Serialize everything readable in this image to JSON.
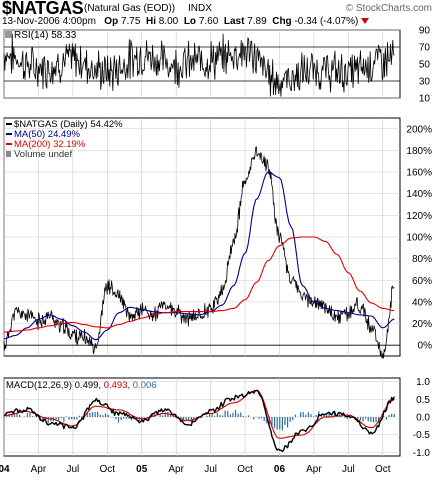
{
  "header": {
    "symbol": "$NATGAS",
    "name": "(Natural Gas (EOD))",
    "exchange": "INDX",
    "brand": "© StockCharts.com",
    "date": "13-Nov-2006 4:00pm",
    "op_label": "Op",
    "op": "7.75",
    "hi_label": "Hi",
    "hi": "8.00",
    "lo_label": "Lo",
    "lo": "7.60",
    "last_label": "Last",
    "last": "7.89",
    "chg_label": "Chg",
    "chg": "-0.34",
    "chg_pct": "(-4.07%)"
  },
  "colors": {
    "price": "#000000",
    "ma50": "#00008b",
    "ma200": "#e00000",
    "rsi": "#000000",
    "macd": "#000000",
    "signal": "#cc0000",
    "hist": "#2e6da4",
    "grid": "#cccccc"
  },
  "rsi_panel": {
    "legend_label": "RSI(14)",
    "legend_value": "58.33",
    "ticks": [
      "90",
      "70",
      "50",
      "30",
      "10"
    ]
  },
  "price_panel": {
    "legend": [
      {
        "key": "price",
        "text": "$NATGAS (Daily) 54.42%"
      },
      {
        "key": "ma50",
        "text": "MA(50) 24.49%"
      },
      {
        "key": "ma200",
        "text": "MA(200) 32.19%"
      },
      {
        "key": "vol",
        "text": "Volume undef"
      }
    ],
    "ticks": [
      "200%",
      "180%",
      "160%",
      "140%",
      "120%",
      "100%",
      "80%",
      "60%",
      "40%",
      "20%",
      "0%"
    ]
  },
  "macd_panel": {
    "legend_label": "MACD(12,26,9)",
    "macd_value": "0.499",
    "signal_value": "0.493",
    "hist_value": "0.006",
    "ticks": [
      "1.0",
      "0.5",
      "0.0",
      "-0.5",
      "-1.0"
    ]
  },
  "x_axis": {
    "labels": [
      "04",
      "Apr",
      "Jul",
      "Oct",
      "05",
      "Apr",
      "Jul",
      "Oct",
      "06",
      "Apr",
      "Jul",
      "Oct"
    ]
  },
  "chart_data": [
    {
      "type": "line",
      "title": "RSI(14)",
      "ylim": [
        10,
        90
      ],
      "x": [
        "2004-01",
        "2004-04",
        "2004-07",
        "2004-10",
        "2005-01",
        "2005-04",
        "2005-07",
        "2005-10",
        "2006-01",
        "2006-04",
        "2006-07",
        "2006-10",
        "2006-11"
      ],
      "series": [
        {
          "name": "RSI(14)",
          "values": [
            62,
            45,
            55,
            40,
            60,
            50,
            55,
            65,
            30,
            42,
            40,
            55,
            58
          ]
        }
      ]
    },
    {
      "type": "line",
      "title": "$NATGAS (Daily)",
      "ylim": [
        -10,
        210
      ],
      "x": [
        "2004-01",
        "2004-02",
        "2004-03",
        "2004-04",
        "2004-05",
        "2004-06",
        "2004-07",
        "2004-08",
        "2004-09",
        "2004-10",
        "2004-11",
        "2004-12",
        "2005-01",
        "2005-02",
        "2005-03",
        "2005-04",
        "2005-05",
        "2005-06",
        "2005-07",
        "2005-08",
        "2005-09",
        "2005-10",
        "2005-11",
        "2005-12",
        "2006-01",
        "2006-02",
        "2006-03",
        "2006-04",
        "2006-05",
        "2006-06",
        "2006-07",
        "2006-08",
        "2006-09",
        "2006-10",
        "2006-11"
      ],
      "series": [
        {
          "name": "$NATGAS (Daily)",
          "values": [
            0,
            30,
            28,
            22,
            27,
            18,
            10,
            6,
            0,
            55,
            45,
            25,
            33,
            28,
            37,
            30,
            24,
            28,
            35,
            48,
            96,
            150,
            180,
            165,
            100,
            62,
            45,
            40,
            35,
            25,
            30,
            38,
            15,
            -10,
            54
          ]
        },
        {
          "name": "MA(50)",
          "values": [
            6,
            9,
            16,
            24,
            28,
            24,
            18,
            12,
            5,
            14,
            30,
            35,
            33,
            31,
            30,
            30,
            29,
            28,
            31,
            37,
            55,
            85,
            135,
            160,
            155,
            110,
            55,
            40,
            34,
            32,
            30,
            28,
            27,
            16,
            24
          ]
        },
        {
          "name": "MA(200)",
          "values": [
            12,
            13,
            14,
            16,
            18,
            20,
            21,
            19,
            17,
            16,
            19,
            22,
            25,
            28,
            30,
            31,
            31,
            31,
            31,
            32,
            34,
            42,
            58,
            78,
            92,
            99,
            100,
            100,
            96,
            84,
            67,
            50,
            39,
            34,
            32
          ]
        }
      ]
    },
    {
      "type": "line",
      "title": "MACD(12,26,9)",
      "ylim": [
        -1.1,
        1.1
      ],
      "x": [
        "2004-01",
        "2004-03",
        "2004-05",
        "2004-07",
        "2004-09",
        "2004-11",
        "2005-01",
        "2005-03",
        "2005-05",
        "2005-07",
        "2005-09",
        "2005-11",
        "2006-01",
        "2006-03",
        "2006-05",
        "2006-07",
        "2006-09",
        "2006-11"
      ],
      "series": [
        {
          "name": "MACD",
          "values": [
            0.1,
            0.2,
            -0.15,
            -0.3,
            0.45,
            0.1,
            -0.1,
            0.2,
            -0.2,
            0.15,
            0.55,
            0.7,
            -0.95,
            -0.4,
            0.1,
            0.05,
            -0.45,
            0.5
          ]
        },
        {
          "name": "Signal",
          "values": [
            0.05,
            0.15,
            -0.05,
            -0.25,
            0.3,
            0.2,
            -0.05,
            0.1,
            -0.1,
            0.1,
            0.4,
            0.75,
            -0.6,
            -0.5,
            0.0,
            0.05,
            -0.3,
            0.49
          ]
        }
      ]
    }
  ]
}
